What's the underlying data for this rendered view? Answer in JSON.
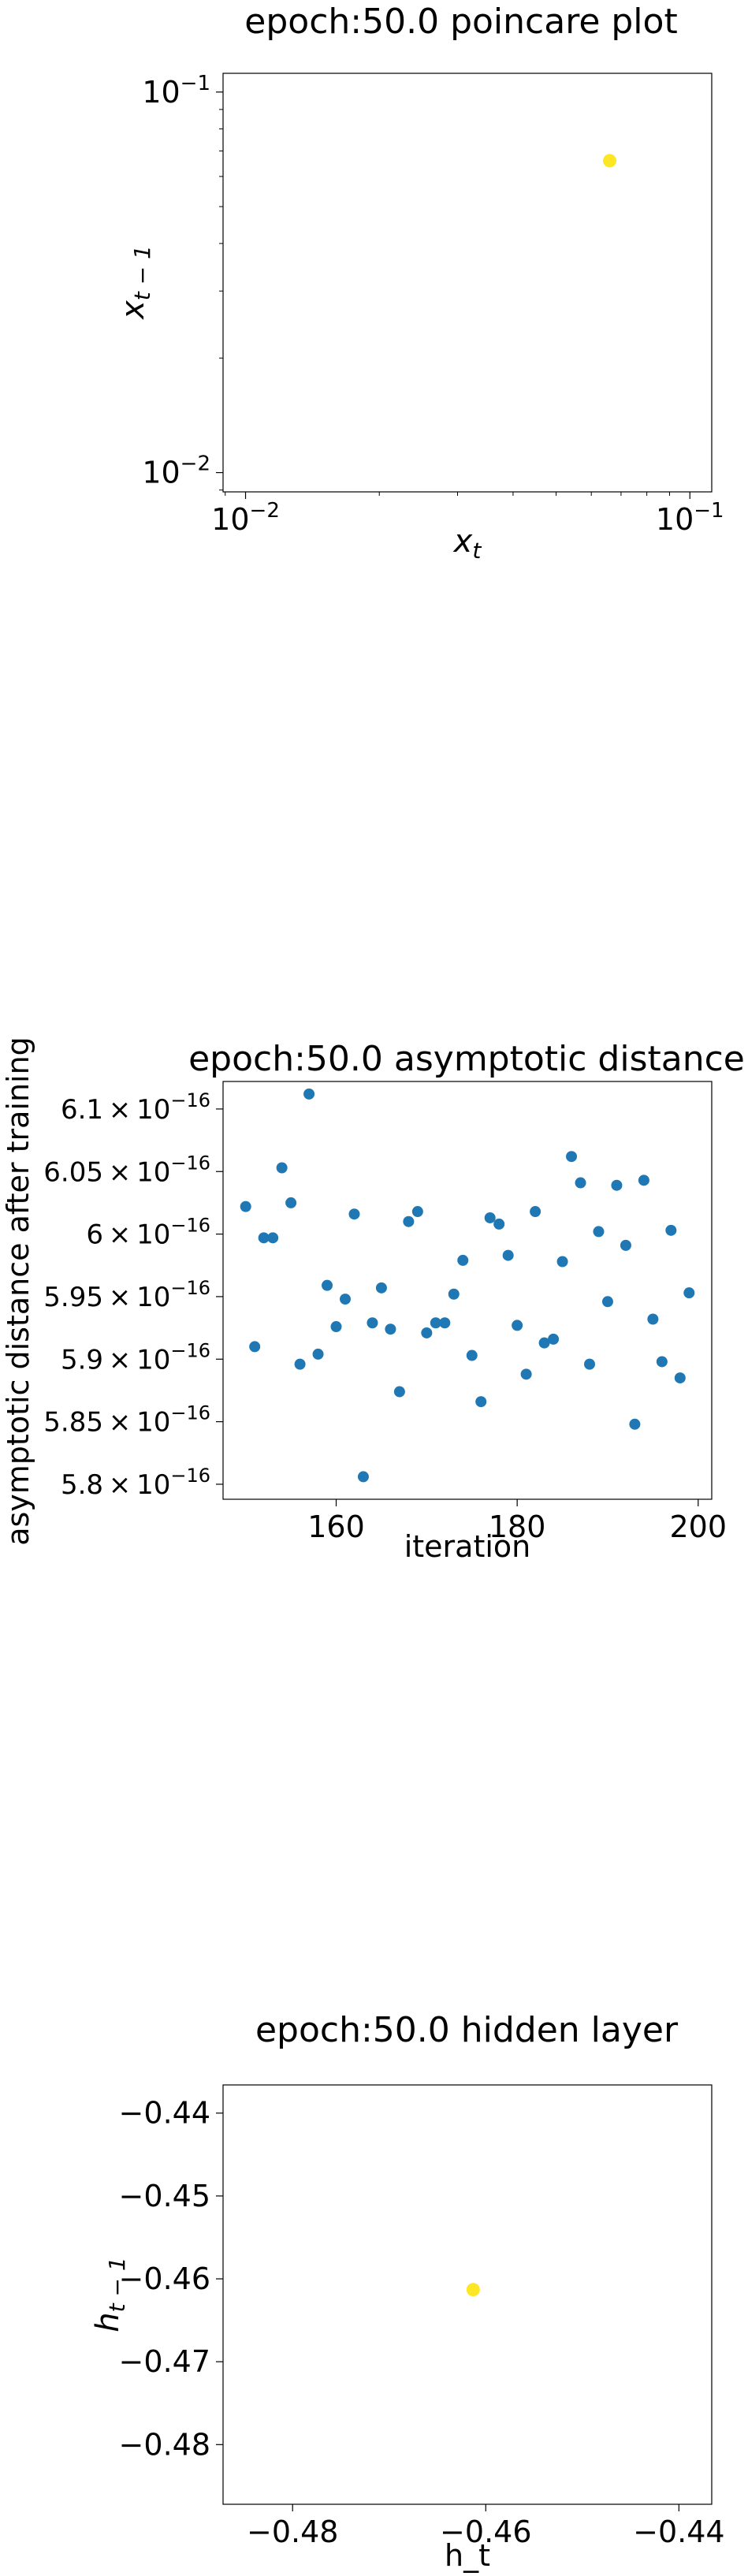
{
  "chart_data": [
    {
      "type": "scatter",
      "title": "epoch:50.0 poincare plot",
      "xlabel": "x_t",
      "ylabel": "x_{t-1}",
      "xscale": "log",
      "yscale": "log",
      "xlim": [
        0.0089,
        0.112
      ],
      "ylim": [
        0.0089,
        0.112
      ],
      "xticks": [
        {
          "value": 0.01,
          "base": "10",
          "exp": "−2"
        },
        {
          "value": 0.1,
          "base": "10",
          "exp": "−1"
        }
      ],
      "yticks": [
        {
          "value": 0.01,
          "base": "10",
          "exp": "−2"
        },
        {
          "value": 0.1,
          "base": "10",
          "exp": "−1"
        }
      ],
      "marker_color": "#fde725",
      "series": [
        {
          "x": [
            0.066
          ],
          "y": [
            0.066
          ]
        }
      ]
    },
    {
      "type": "scatter",
      "title": "epoch:50.0 asymptotic distance",
      "xlabel": "iteration",
      "ylabel": "asymptotic distance after training",
      "xlim": [
        147.5,
        201.5
      ],
      "ylim": [
        5.788e-16,
        6.122e-16
      ],
      "xticks": [
        {
          "value": 160,
          "label": "160"
        },
        {
          "value": 180,
          "label": "180"
        },
        {
          "value": 200,
          "label": "200"
        }
      ],
      "yticks": [
        {
          "value": 5.8e-16,
          "mant": "5.8"
        },
        {
          "value": 5.85e-16,
          "mant": "5.85"
        },
        {
          "value": 5.9e-16,
          "mant": "5.9"
        },
        {
          "value": 5.95e-16,
          "mant": "5.95"
        },
        {
          "value": 6e-16,
          "mant": "6"
        },
        {
          "value": 6.05e-16,
          "mant": "6.05"
        },
        {
          "value": 6.1e-16,
          "mant": "6.1"
        }
      ],
      "ytick_suffix_base": "10",
      "ytick_suffix_exp": "−16",
      "marker_color": "#1f77b4",
      "series": [
        {
          "x": [
            150,
            151,
            152,
            153,
            154,
            155,
            156,
            157,
            158,
            159,
            160,
            161,
            162,
            163,
            164,
            165,
            166,
            167,
            168,
            169,
            170,
            171,
            172,
            173,
            174,
            175,
            176,
            177,
            178,
            179,
            180,
            181,
            182,
            183,
            184,
            185,
            186,
            187,
            188,
            189,
            190,
            191,
            192,
            193,
            194,
            195,
            196,
            197,
            198,
            199
          ],
          "y": [
            6.022e-16,
            5.91e-16,
            5.997e-16,
            5.997e-16,
            6.053e-16,
            6.025e-16,
            5.896e-16,
            6.112e-16,
            5.904e-16,
            5.959e-16,
            5.926e-16,
            5.948e-16,
            6.016e-16,
            5.806e-16,
            5.929e-16,
            5.957e-16,
            5.924e-16,
            5.874e-16,
            6.01e-16,
            6.018e-16,
            5.921e-16,
            5.929e-16,
            5.929e-16,
            5.952e-16,
            5.979e-16,
            5.903e-16,
            5.866e-16,
            6.013e-16,
            6.008e-16,
            5.983e-16,
            5.927e-16,
            5.888e-16,
            6.018e-16,
            5.913e-16,
            5.916e-16,
            5.978e-16,
            6.062e-16,
            6.041e-16,
            5.896e-16,
            6.002e-16,
            5.946e-16,
            6.039e-16,
            5.991e-16,
            5.848e-16,
            6.043e-16,
            5.932e-16,
            5.898e-16,
            6.003e-16,
            5.885e-16,
            5.953e-16
          ]
        }
      ]
    },
    {
      "type": "scatter",
      "title": "epoch:50.0 hidden layer",
      "xlabel": "h_t",
      "ylabel": "h_{t-1}",
      "xlim": [
        -0.4872,
        -0.4366
      ],
      "ylim": [
        -0.4872,
        -0.4366
      ],
      "xticks": [
        {
          "value": -0.48,
          "label": "−0.48"
        },
        {
          "value": -0.46,
          "label": "−0.46"
        },
        {
          "value": -0.44,
          "label": "−0.44"
        }
      ],
      "yticks": [
        {
          "value": -0.44,
          "label": "−0.44"
        },
        {
          "value": -0.45,
          "label": "−0.45"
        },
        {
          "value": -0.46,
          "label": "−0.46"
        },
        {
          "value": -0.47,
          "label": "−0.47"
        },
        {
          "value": -0.48,
          "label": "−0.48"
        }
      ],
      "marker_color": "#fde725",
      "series": [
        {
          "x": [
            -0.4613
          ],
          "y": [
            -0.4613
          ]
        }
      ]
    }
  ]
}
